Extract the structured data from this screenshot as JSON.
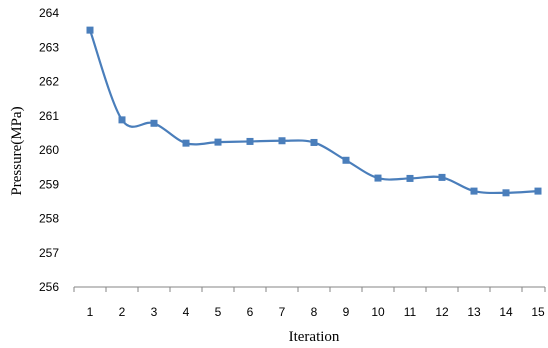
{
  "chart_data": {
    "type": "line",
    "x": [
      1,
      2,
      3,
      4,
      5,
      6,
      7,
      8,
      9,
      10,
      11,
      12,
      13,
      14,
      15
    ],
    "series": [
      {
        "values": [
          263.5,
          260.88,
          260.78,
          260.2,
          260.23,
          260.25,
          260.27,
          260.22,
          259.7,
          259.18,
          259.17,
          259.2,
          258.8,
          258.75,
          258.8
        ],
        "color": "#4a7ebb",
        "marker": "square"
      }
    ],
    "xlabel": "Iteration",
    "ylabel": "Pressure(MPa)",
    "ylim": [
      256,
      264
    ],
    "yticks": [
      256,
      257,
      258,
      259,
      260,
      261,
      262,
      263,
      264
    ],
    "xtick_labels": [
      "1",
      "2",
      "3",
      "4",
      "5",
      "6",
      "7",
      "8",
      "9",
      "10",
      "11",
      "12",
      "13",
      "14",
      "15"
    ],
    "grid": false,
    "smooth": true
  }
}
